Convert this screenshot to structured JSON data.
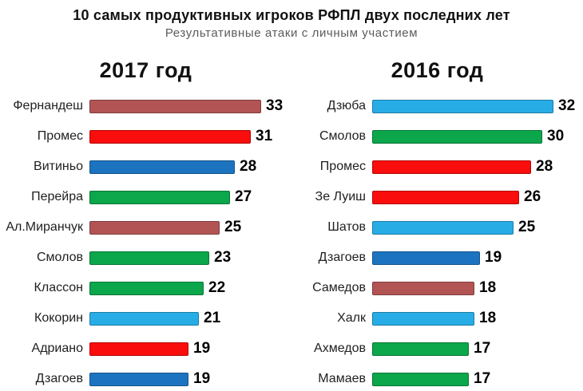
{
  "header": {
    "title": "10 самых продуктивных игроков РФПЛ двух последних лет",
    "subtitle": "Результативные атаки с личным участием"
  },
  "palette": {
    "maroon": "#B25454",
    "red": "#F90D0D",
    "blue": "#1C74C0",
    "green": "#0CA64B",
    "lightblue": "#28ACE6"
  },
  "chart_data": [
    {
      "type": "bar",
      "orientation": "horizontal",
      "title": "2017 год",
      "categories": [
        "Фернандеш",
        "Промес",
        "Витиньо",
        "Перейра",
        "Ал.Миранчук",
        "Смолов",
        "Классон",
        "Кокорин",
        "Адриано",
        "Дзагоев"
      ],
      "values": [
        33,
        31,
        28,
        27,
        25,
        23,
        22,
        21,
        19,
        19
      ],
      "bar_colors": [
        "maroon",
        "red",
        "blue",
        "green",
        "maroon",
        "green",
        "green",
        "lightblue",
        "red",
        "blue"
      ],
      "xlim": [
        0,
        33
      ],
      "value_labels_shown": true,
      "grid": false,
      "legend": false
    },
    {
      "type": "bar",
      "orientation": "horizontal",
      "title": "2016  год",
      "categories": [
        "Дзюба",
        "Смолов",
        "Промес",
        "Зе Луиш",
        "Шатов",
        "Дзагоев",
        "Самедов",
        "Халк",
        "Ахмедов",
        "Мамаев"
      ],
      "values": [
        32,
        30,
        28,
        26,
        25,
        19,
        18,
        18,
        17,
        17
      ],
      "bar_colors": [
        "lightblue",
        "green",
        "red",
        "red",
        "lightblue",
        "blue",
        "maroon",
        "lightblue",
        "green",
        "green"
      ],
      "xlim": [
        0,
        32
      ],
      "value_labels_shown": true,
      "grid": false,
      "legend": false
    }
  ]
}
